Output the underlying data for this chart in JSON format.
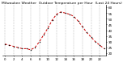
{
  "title": "Milwaukee Weather  Outdoor Temperature per Hour  (Last 24 Hours)",
  "hours": [
    0,
    1,
    2,
    3,
    4,
    5,
    6,
    7,
    8,
    9,
    10,
    11,
    12,
    13,
    14,
    15,
    16,
    17,
    18,
    19,
    20,
    21,
    22,
    23
  ],
  "temps": [
    28,
    27,
    26,
    25,
    24,
    24,
    23,
    25,
    30,
    36,
    42,
    49,
    54,
    56,
    55,
    54,
    52,
    48,
    43,
    38,
    34,
    30,
    27,
    24
  ],
  "line_color": "#cc0000",
  "marker_color": "#000000",
  "bg_color": "#ffffff",
  "plot_bg": "#ffffff",
  "grid_color": "#999999",
  "title_color": "#000000",
  "title_fontsize": 3.2,
  "ylim": [
    18,
    62
  ],
  "yticks": [
    20,
    25,
    30,
    35,
    40,
    45,
    50,
    55,
    60
  ],
  "ytick_labels": [
    "20",
    "25",
    "30",
    "35",
    "40",
    "45",
    "50",
    "55",
    "60"
  ],
  "ylabel_fontsize": 3.0,
  "xlabel_fontsize": 2.8,
  "xticks": [
    0,
    2,
    4,
    6,
    8,
    10,
    12,
    14,
    16,
    18,
    20,
    22
  ],
  "xtick_labels": [
    "0",
    "2",
    "4",
    "6",
    "8",
    "10",
    "12",
    "14",
    "16",
    "18",
    "20",
    "22"
  ],
  "vgrid_positions": [
    0,
    2,
    4,
    6,
    8,
    10,
    12,
    14,
    16,
    18,
    20,
    22
  ]
}
